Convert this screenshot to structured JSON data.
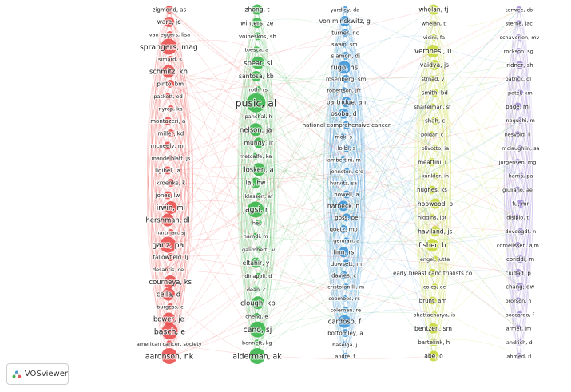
{
  "app": {
    "name": "VOSviewer"
  },
  "network": {
    "clusters": [
      {
        "color": "#e8504f",
        "line_color": "rgba(232,80,79,0.22)",
        "nodes": [
          {
            "label": "zigmond, as",
            "w": 1
          },
          {
            "label": "ware, je",
            "w": 2
          },
          {
            "label": "van eggers, lisa",
            "w": 0
          },
          {
            "label": "sprangers, mag",
            "w": 4
          },
          {
            "label": "simard, s",
            "w": 0
          },
          {
            "label": "schmitz, kh",
            "w": 3
          },
          {
            "label": "pinto, bm",
            "w": 1
          },
          {
            "label": "paskett, ed",
            "w": 0
          },
          {
            "label": "nyrop, ka",
            "w": 0
          },
          {
            "label": "montazeri, a",
            "w": 1
          },
          {
            "label": "miller, kd",
            "w": 1
          },
          {
            "label": "mcneely, ml",
            "w": 1
          },
          {
            "label": "mandelblatt, js",
            "w": 0
          },
          {
            "label": "ligibel, ja",
            "w": 1
          },
          {
            "label": "kroenke, k",
            "w": 1
          },
          {
            "label": "jones, lw",
            "w": 1
          },
          {
            "label": "irwin, ml",
            "w": 3
          },
          {
            "label": "hershman, dl",
            "w": 3
          },
          {
            "label": "hartman, sj",
            "w": 0
          },
          {
            "label": "ganz, pa",
            "w": 4
          },
          {
            "label": "fallowfield, lj",
            "w": 1
          },
          {
            "label": "desantis, ce",
            "w": 0
          },
          {
            "label": "courneya, ks",
            "w": 3
          },
          {
            "label": "cella, d",
            "w": 3
          },
          {
            "label": "burgess, c",
            "w": 0
          },
          {
            "label": "bower, je",
            "w": 3
          },
          {
            "label": "basch, e",
            "w": 4
          },
          {
            "label": "american cancer, society",
            "w": 0
          },
          {
            "label": "aaronson, nk",
            "w": 4
          }
        ]
      },
      {
        "color": "#3ab54a",
        "line_color": "rgba(58,181,74,0.20)",
        "nodes": [
          {
            "label": "zhong, t",
            "w": 2
          },
          {
            "label": "winters, ze",
            "w": 2
          },
          {
            "label": "voineskos, sh",
            "w": 1
          },
          {
            "label": "toesca, a",
            "w": 0
          },
          {
            "label": "spear, sl",
            "w": 3
          },
          {
            "label": "santosa, kb",
            "w": 2
          },
          {
            "label": "roth, rs",
            "w": 0
          },
          {
            "label": "pusic, al",
            "w": 5
          },
          {
            "label": "panchal, h",
            "w": 0
          },
          {
            "label": "nelson, ja",
            "w": 3
          },
          {
            "label": "mundy, lr",
            "w": 2
          },
          {
            "label": "metcalfe, ka",
            "w": 0
          },
          {
            "label": "losken, a",
            "w": 3
          },
          {
            "label": "lai, hw",
            "w": 2
          },
          {
            "label": "klassen, af",
            "w": 0
          },
          {
            "label": "jagsi, r",
            "w": 4
          },
          {
            "label": "hei, j",
            "w": 0
          },
          {
            "label": "hamdi, m",
            "w": 0
          },
          {
            "label": "galimberti, v",
            "w": 0
          },
          {
            "label": "eltahir, y",
            "w": 2
          },
          {
            "label": "dinapoli, d",
            "w": 0
          },
          {
            "label": "dean, c",
            "w": 0
          },
          {
            "label": "clough, kb",
            "w": 3
          },
          {
            "label": "cheng, e",
            "w": 0
          },
          {
            "label": "cano, sj",
            "w": 4
          },
          {
            "label": "bennett, kg",
            "w": 0
          },
          {
            "label": "alderman, ak",
            "w": 4
          }
        ]
      },
      {
        "color": "#3f97d8",
        "line_color": "rgba(63,151,216,0.22)",
        "nodes": [
          {
            "label": "yardley, da",
            "w": 0
          },
          {
            "label": "von minckwitz, g",
            "w": 2
          },
          {
            "label": "turner, nc",
            "w": 1
          },
          {
            "label": "swain, sm",
            "w": 0
          },
          {
            "label": "slamon, dj",
            "w": 1
          },
          {
            "label": "rugo, hs",
            "w": 3
          },
          {
            "label": "rosenberg, sm",
            "w": 1
          },
          {
            "label": "robertson, jfr",
            "w": 0
          },
          {
            "label": "partridge, ah",
            "w": 2
          },
          {
            "label": "osoba, d",
            "w": 2
          },
          {
            "label": "national comprehensive cancer",
            "w": 1
          },
          {
            "label": "mok, s",
            "w": 0
          },
          {
            "label": "loibl, s",
            "w": 1
          },
          {
            "label": "lambertini, m",
            "w": 0
          },
          {
            "label": "johnston, srd",
            "w": 0
          },
          {
            "label": "hurvitz, sa",
            "w": 0
          },
          {
            "label": "howell, a",
            "w": 1
          },
          {
            "label": "harbeck, n",
            "w": 2
          },
          {
            "label": "goss, pe",
            "w": 1
          },
          {
            "label": "goetz, mp",
            "w": 1
          },
          {
            "label": "gennari, a",
            "w": 0
          },
          {
            "label": "finn, rs",
            "w": 2
          },
          {
            "label": "dowsett, m",
            "w": 1
          },
          {
            "label": "davies, c",
            "w": 1
          },
          {
            "label": "cristofanilli, m",
            "w": 0
          },
          {
            "label": "coombes, rc",
            "w": 0
          },
          {
            "label": "coleman, re",
            "w": 0
          },
          {
            "label": "cardoso, f",
            "w": 3
          },
          {
            "label": "bottomley, a",
            "w": 1
          },
          {
            "label": "baselga, j",
            "w": 0
          },
          {
            "label": "andr&#233;, f",
            "w": 0
          }
        ]
      },
      {
        "color": "#c8d83a",
        "line_color": "rgba(200,216,58,0.24)",
        "nodes": [
          {
            "label": "whelan, tj",
            "w": 2
          },
          {
            "label": "whelan, t",
            "w": 0
          },
          {
            "label": "vicini, fa",
            "w": 0
          },
          {
            "label": "veronesi, u",
            "w": 3
          },
          {
            "label": "vaidya, js",
            "w": 2
          },
          {
            "label": "strnad, v",
            "w": 0
          },
          {
            "label": "smith, bd",
            "w": 1
          },
          {
            "label": "shaitelman, sf",
            "w": 0
          },
          {
            "label": "shah, c",
            "w": 1
          },
          {
            "label": "polg&#225;r, c",
            "w": 0
          },
          {
            "label": "olivotto, ia",
            "w": 0
          },
          {
            "label": "meattini, i",
            "w": 1
          },
          {
            "label": "kunkler, ih",
            "w": 0
          },
          {
            "label": "hughes, ks",
            "w": 1
          },
          {
            "label": "hopwood, p",
            "w": 2
          },
          {
            "label": "higgins, jpt",
            "w": 0
          },
          {
            "label": "haviland, js",
            "w": 2
          },
          {
            "label": "fisher, b",
            "w": 3
          },
          {
            "label": "engel, jutta",
            "w": 0
          },
          {
            "label": "early breast canc trialists co",
            "w": 1
          },
          {
            "label": "coles, ce",
            "w": 0
          },
          {
            "label": "brunt, am",
            "w": 1
          },
          {
            "label": "bhattacharya, is",
            "w": 0
          },
          {
            "label": "bentzen, sm",
            "w": 2
          },
          {
            "label": "bartelink, h",
            "w": 1
          },
          {
            "label": "abe, o",
            "w": 2
          }
        ]
      },
      {
        "color": "#a58fd6",
        "line_color": "rgba(165,143,214,0.22)",
        "nodes": [
          {
            "label": "terwee, cb",
            "w": 0
          },
          {
            "label": "sterne, jac",
            "w": 0
          },
          {
            "label": "schaverien, mv",
            "w": 0
          },
          {
            "label": "rockson, sg",
            "w": 0
          },
          {
            "label": "ridner, sh",
            "w": 1
          },
          {
            "label": "patrick, dl",
            "w": 0
          },
          {
            "label": "patel, km",
            "w": 0
          },
          {
            "label": "page, mj",
            "w": 1
          },
          {
            "label": "noguchi, m",
            "w": 0
          },
          {
            "label": "nesvold, il",
            "w": 0
          },
          {
            "label": "mclaughlin, sa",
            "w": 0
          },
          {
            "label": "jorgensen, mg",
            "w": 0
          },
          {
            "label": "harris, pa",
            "w": 0
          },
          {
            "label": "giuliano, ae",
            "w": 0
          },
          {
            "label": "fu, mr",
            "w": 1
          },
          {
            "label": "disipio, t",
            "w": 0
          },
          {
            "label": "devoogdt, n",
            "w": 0
          },
          {
            "label": "cornelissen, ajm",
            "w": 0
          },
          {
            "label": "coriddi, m",
            "w": 1
          },
          {
            "label": "ciudad, p",
            "w": 1
          },
          {
            "label": "chang, dw",
            "w": 1
          },
          {
            "label": "brorson, h",
            "w": 0
          },
          {
            "label": "boccardo, f",
            "w": 0
          },
          {
            "label": "armer, jm",
            "w": 0
          },
          {
            "label": "andrich, d",
            "w": 0
          },
          {
            "label": "ahmed, rl",
            "w": 0
          }
        ]
      }
    ]
  }
}
